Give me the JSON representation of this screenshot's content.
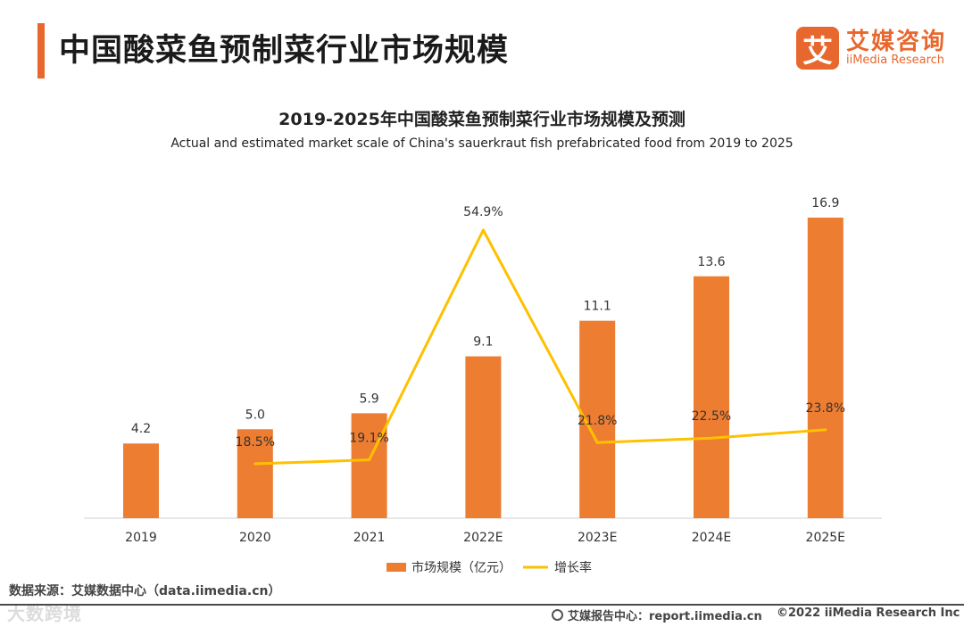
{
  "header": {
    "title": "中国酸菜鱼预制菜行业市场规模",
    "brand_mark": "艾",
    "brand_cn": "艾媒咨询",
    "brand_en": "iiMedia Research"
  },
  "chart_data": {
    "type": "bar",
    "title": "2019-2025年中国酸菜鱼预制菜行业市场规模及预测",
    "subtitle": "Actual and estimated market scale of China's sauerkraut fish prefabricated food from 2019 to 2025",
    "categories": [
      "2019",
      "2020",
      "2021",
      "2022E",
      "2023E",
      "2024E",
      "2025E"
    ],
    "series": [
      {
        "name": "市场规模（亿元）",
        "type": "bar",
        "color": "#ed7d31",
        "values": [
          4.2,
          5.0,
          5.9,
          9.1,
          11.1,
          13.6,
          16.9
        ],
        "labels": [
          "4.2",
          "5.0",
          "5.9",
          "9.1",
          "11.1",
          "13.6",
          "16.9"
        ]
      },
      {
        "name": "增长率",
        "type": "line",
        "color": "#ffc000",
        "values": [
          null,
          18.5,
          19.1,
          54.9,
          21.8,
          22.5,
          23.8
        ],
        "labels": [
          null,
          "18.5%",
          "19.1%",
          "54.9%",
          "21.8%",
          "22.5%",
          "23.8%"
        ]
      }
    ],
    "ylim_bar": [
      0,
      20
    ],
    "ylim_line": [
      0,
      60
    ],
    "grid": false,
    "legend_position": "bottom"
  },
  "footer": {
    "source": "数据来源：艾媒数据中心（data.iimedia.cn）",
    "watermark": "大数跨境",
    "report": "艾媒报告中心：report.iimedia.cn",
    "copyright": "©2022 iiMedia Research Inc"
  },
  "icons": {
    "globe": "globe-icon"
  }
}
